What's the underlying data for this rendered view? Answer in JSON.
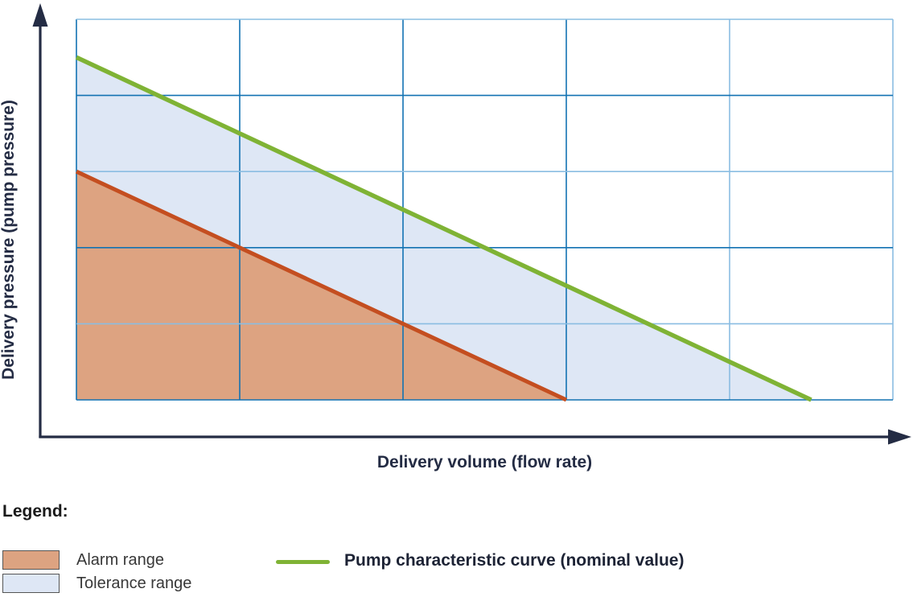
{
  "chart": {
    "xlabel": "Delivery volume (flow rate)",
    "ylabel": "Delivery pressure (pump pressure)"
  },
  "chart_data": {
    "type": "area",
    "title": "",
    "xlabel": "Delivery volume (flow rate)",
    "ylabel": "Delivery pressure (pump pressure)",
    "x_range": [
      0,
      5
    ],
    "y_range": [
      0,
      5
    ],
    "grid": {
      "columns": 5,
      "rows": 5,
      "tick_labels_shown": false
    },
    "series": [
      {
        "name": "Pump characteristic curve (nominal value)",
        "type": "line",
        "color": "#7FB335",
        "points": [
          [
            0,
            4.5
          ],
          [
            4.5,
            0
          ]
        ]
      },
      {
        "name": "Tolerance range",
        "type": "area",
        "fill": "#DEE7F5",
        "polygon": [
          [
            0,
            4.5
          ],
          [
            4.5,
            0
          ],
          [
            3,
            0
          ],
          [
            0,
            3
          ]
        ]
      },
      {
        "name": "Alarm range boundary",
        "type": "line",
        "color": "#C44E20",
        "points": [
          [
            0,
            3
          ],
          [
            3,
            0
          ]
        ]
      },
      {
        "name": "Alarm range",
        "type": "area",
        "fill": "#DDA381",
        "polygon": [
          [
            0,
            3
          ],
          [
            3,
            0
          ],
          [
            0,
            0
          ]
        ]
      }
    ],
    "legend_position": "bottom"
  },
  "legend": {
    "heading": "Legend:",
    "items": [
      {
        "label": "Alarm range",
        "swatch": "area",
        "color": "#DDA381"
      },
      {
        "label": "Tolerance range",
        "swatch": "area",
        "color": "#DEE7F5"
      },
      {
        "label": "Pump characteristic curve (nominal value)",
        "swatch": "line",
        "color": "#7FB335"
      }
    ]
  },
  "colors": {
    "axis_arrow": "#242C44",
    "axis_text": "#242C44",
    "grid_blue_dark": "#1272B2",
    "grid_blue_light": "#8ABDE2",
    "pump_curve_green": "#7FB335",
    "alarm_line_red": "#C44E20",
    "alarm_fill_orange": "#DDA381",
    "tolerance_fill_blue": "#DEE7F5"
  }
}
